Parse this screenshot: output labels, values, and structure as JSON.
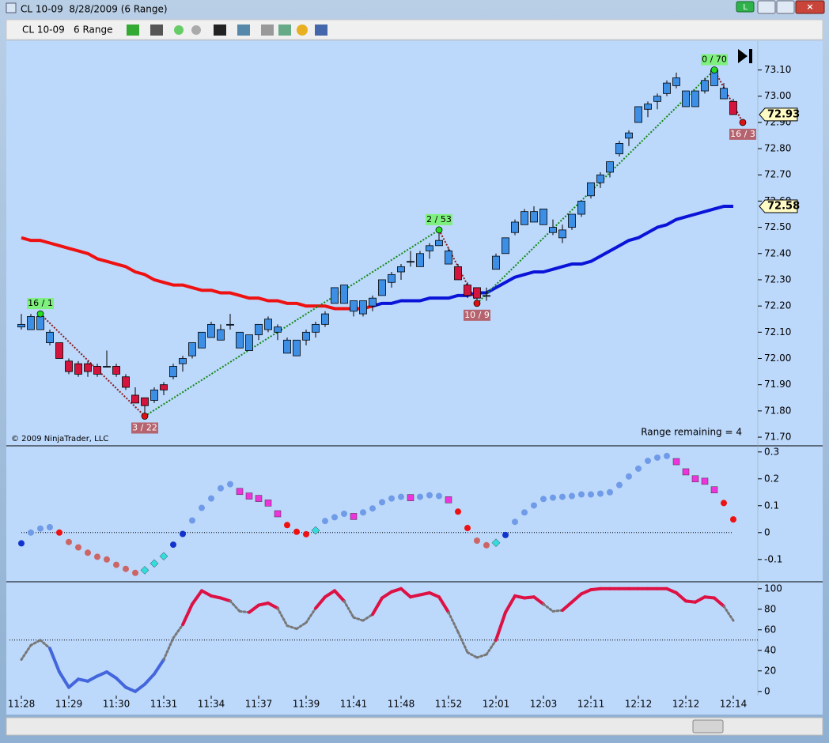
{
  "window": {
    "title": "CL 10-09  8/28/2009 (6 Range)",
    "instrument": "CL 10-09",
    "period": "6 Range",
    "badge": "L"
  },
  "chart_data": {
    "type": "candlestick",
    "categories": [
      "11:28",
      null,
      null,
      null,
      null,
      "11:29",
      null,
      null,
      null,
      null,
      "11:30",
      null,
      null,
      null,
      null,
      "11:31",
      null,
      null,
      null,
      null,
      "11:34",
      null,
      null,
      null,
      null,
      "11:37",
      null,
      null,
      null,
      null,
      "11:39",
      null,
      null,
      null,
      null,
      "11:41",
      null,
      null,
      null,
      null,
      "11:48",
      null,
      null,
      null,
      null,
      "11:52",
      null,
      null,
      null,
      null,
      "12:01",
      null,
      null,
      null,
      null,
      "12:03",
      null,
      null,
      null,
      null,
      "12:11",
      null,
      null,
      null,
      null,
      "12:12",
      null,
      null,
      null,
      null,
      "12:12",
      null,
      null,
      null,
      null,
      "12:14",
      null
    ],
    "up_color": "#3d8fe6",
    "down_color": "#d4143c",
    "open": [
      72.12,
      72.11,
      72.11,
      72.06,
      72.06,
      71.99,
      71.98,
      71.98,
      71.97,
      71.97,
      71.97,
      71.93,
      71.86,
      71.85,
      71.84,
      71.9,
      71.93,
      71.98,
      72.01,
      72.04,
      72.08,
      72.07,
      72.13,
      72.04,
      72.03,
      72.09,
      72.11,
      72.1,
      72.02,
      72.01,
      72.07,
      72.1,
      72.13,
      72.21,
      72.21,
      72.18,
      72.17,
      72.2,
      72.24,
      72.29,
      72.33,
      72.37,
      72.35,
      72.41,
      72.43,
      72.36,
      72.35,
      72.28,
      72.27,
      72.24,
      72.34,
      72.4,
      72.48,
      72.51,
      72.52,
      72.51,
      72.48,
      72.46,
      72.5,
      72.55,
      72.62,
      72.67,
      72.71,
      72.78,
      72.84,
      72.9,
      72.95,
      72.98,
      73.01,
      73.04,
      72.96,
      72.96,
      73.02,
      73.04,
      72.99,
      72.98,
      null
    ],
    "high": [
      72.17,
      72.17,
      72.17,
      72.11,
      72.06,
      72.0,
      71.99,
      71.99,
      71.98,
      72.03,
      71.98,
      71.94,
      71.89,
      71.85,
      71.89,
      71.91,
      71.98,
      72.01,
      72.06,
      72.1,
      72.14,
      72.13,
      72.17,
      72.1,
      72.09,
      72.13,
      72.16,
      72.13,
      72.08,
      72.07,
      72.11,
      72.14,
      72.18,
      72.27,
      72.28,
      72.22,
      72.22,
      72.24,
      72.3,
      72.33,
      72.36,
      72.41,
      72.41,
      72.44,
      72.49,
      72.42,
      72.36,
      72.29,
      72.27,
      72.27,
      72.4,
      72.46,
      72.53,
      72.57,
      72.58,
      72.57,
      72.53,
      72.51,
      72.55,
      72.6,
      72.67,
      72.71,
      72.75,
      72.83,
      72.87,
      72.96,
      72.98,
      73.01,
      73.06,
      73.09,
      73.02,
      73.02,
      73.07,
      73.1,
      73.05,
      72.99,
      null
    ],
    "low": [
      72.11,
      72.11,
      72.11,
      72.05,
      72.0,
      71.94,
      71.93,
      71.93,
      71.93,
      71.97,
      71.93,
      71.88,
      71.83,
      71.78,
      71.83,
      71.86,
      71.92,
      71.95,
      72.0,
      72.04,
      72.08,
      72.07,
      72.11,
      72.04,
      72.03,
      72.07,
      72.1,
      72.07,
      72.02,
      72.01,
      72.05,
      72.08,
      72.12,
      72.21,
      72.21,
      72.16,
      72.16,
      72.18,
      72.24,
      72.27,
      72.3,
      72.35,
      72.35,
      72.38,
      72.43,
      72.36,
      72.3,
      72.23,
      72.21,
      72.22,
      72.34,
      72.4,
      72.47,
      72.51,
      72.52,
      72.51,
      72.47,
      72.44,
      72.49,
      72.54,
      72.61,
      72.65,
      72.69,
      72.77,
      72.81,
      72.9,
      72.92,
      72.95,
      73.0,
      73.03,
      72.96,
      72.96,
      73.01,
      73.04,
      72.99,
      72.93,
      null
    ],
    "close": [
      72.13,
      72.16,
      72.16,
      72.1,
      72.0,
      71.95,
      71.94,
      71.95,
      71.94,
      71.97,
      71.94,
      71.89,
      71.83,
      71.82,
      71.88,
      71.88,
      71.97,
      72.0,
      72.06,
      72.1,
      72.13,
      72.11,
      72.13,
      72.1,
      72.09,
      72.13,
      72.15,
      72.12,
      72.07,
      72.07,
      72.1,
      72.13,
      72.17,
      72.27,
      72.28,
      72.22,
      72.22,
      72.23,
      72.3,
      72.32,
      72.35,
      72.37,
      72.4,
      72.43,
      72.45,
      72.41,
      72.3,
      72.24,
      72.23,
      72.24,
      72.39,
      72.46,
      72.52,
      72.56,
      72.56,
      72.57,
      72.5,
      72.49,
      72.55,
      72.6,
      72.67,
      72.7,
      72.75,
      72.82,
      72.86,
      72.96,
      72.97,
      73.0,
      73.05,
      73.07,
      73.02,
      73.02,
      73.06,
      73.1,
      73.03,
      72.93,
      null
    ],
    "ylim": [
      71.67,
      73.21
    ],
    "yticks": [
      {
        "value": 71.7,
        "label": "71.70"
      },
      {
        "value": 71.8,
        "label": "71.80"
      },
      {
        "value": 71.9,
        "label": "71.90"
      },
      {
        "value": 72,
        "label": "72.00"
      },
      {
        "value": 72.1,
        "label": "72.10"
      },
      {
        "value": 72.2,
        "label": "72.20"
      },
      {
        "value": 72.3,
        "label": "72.30"
      },
      {
        "value": 72.4,
        "label": "72.40"
      },
      {
        "value": 72.5,
        "label": "72.50"
      },
      {
        "value": 72.6,
        "label": "72.60"
      },
      {
        "value": 72.7,
        "label": "72.70"
      },
      {
        "value": 72.8,
        "label": "72.80"
      },
      {
        "value": 72.9,
        "label": "72.90"
      },
      {
        "value": 73,
        "label": "73.00"
      },
      {
        "value": 73.1,
        "label": "73.10"
      }
    ],
    "moving_average": [
      {
        "color": "#ee1111",
        "values": [
          72.46,
          72.45,
          72.45,
          72.44,
          72.43,
          72.42,
          72.41,
          72.4,
          72.38,
          72.37,
          72.36,
          72.35,
          72.33,
          72.32,
          72.3,
          72.29,
          72.28,
          72.28,
          72.27,
          72.26,
          72.26,
          72.25,
          72.25,
          72.24,
          72.23,
          72.23,
          72.22,
          72.22,
          72.21,
          72.21,
          72.2,
          72.2,
          72.2,
          72.19,
          72.19,
          72.19,
          72.19,
          72.2,
          null,
          null,
          null,
          null,
          null,
          null,
          null,
          null,
          null,
          null,
          null,
          null,
          null,
          null,
          null,
          null,
          null,
          null,
          null,
          null,
          null,
          null,
          null,
          null,
          null,
          null,
          null,
          null,
          null,
          null,
          null,
          null,
          null,
          null,
          null,
          null,
          null,
          null,
          null
        ]
      },
      {
        "color": "#0a14d8",
        "values": [
          null,
          null,
          null,
          null,
          null,
          null,
          null,
          null,
          null,
          null,
          null,
          null,
          null,
          null,
          null,
          null,
          null,
          null,
          null,
          null,
          null,
          null,
          null,
          null,
          null,
          null,
          null,
          null,
          null,
          null,
          null,
          null,
          null,
          null,
          null,
          null,
          null,
          72.2,
          72.21,
          72.21,
          72.22,
          72.22,
          72.22,
          72.23,
          72.23,
          72.23,
          72.24,
          72.24,
          72.25,
          72.25,
          72.27,
          72.29,
          72.31,
          72.32,
          72.33,
          72.33,
          72.34,
          72.35,
          72.36,
          72.36,
          72.37,
          72.39,
          72.41,
          72.43,
          72.45,
          72.46,
          72.48,
          72.5,
          72.51,
          72.53,
          72.54,
          72.55,
          72.56,
          72.57,
          72.58,
          72.58,
          null
        ]
      }
    ],
    "price_markers": [
      72.93,
      72.58
    ],
    "marker_color": "#fffbc4",
    "pivots": [
      {
        "bar": 2,
        "price": 72.17,
        "label": "16 / 1",
        "kind": "high"
      },
      {
        "bar": 13,
        "price": 71.78,
        "label": "3 / 22",
        "kind": "low"
      },
      {
        "bar": 44,
        "price": 72.49,
        "label": "2 / 53",
        "kind": "high"
      },
      {
        "bar": 48,
        "price": 72.21,
        "label": "10 / 9",
        "kind": "low"
      },
      {
        "bar": 73,
        "price": 73.1,
        "label": "0 / 70",
        "kind": "high"
      },
      {
        "bar": 76,
        "price": 72.9,
        "label": "16 / 3",
        "kind": "low"
      }
    ],
    "high_color": "#22dd22",
    "high_label_color": "#7ef07e",
    "low_color": "#dd1111",
    "low_label_color": "#b5636e",
    "up_line_color": "#118811",
    "down_line_color": "#8b1a1a",
    "copyright": "© 2009 NinjaTrader, LLC",
    "range_text": "Range remaining = 4",
    "oscillator": {
      "ylim": [
        -0.18,
        0.32
      ],
      "yticks": [
        0.3,
        0.2,
        0.1,
        0,
        -0.1
      ],
      "zero": 0,
      "values": [
        -0.04,
        0,
        0.015,
        0.02,
        0,
        -0.035,
        -0.055,
        -0.075,
        -0.09,
        -0.1,
        -0.12,
        -0.135,
        -0.15,
        -0.14,
        -0.115,
        -0.088,
        -0.045,
        -0.005,
        0.045,
        0.092,
        0.127,
        0.165,
        0.18,
        0.153,
        0.136,
        0.127,
        0.11,
        0.07,
        0.028,
        0.003,
        -0.006,
        0.008,
        0.043,
        0.057,
        0.07,
        0.06,
        0.075,
        0.09,
        0.113,
        0.127,
        0.133,
        0.13,
        0.133,
        0.139,
        0.136,
        0.122,
        0.078,
        0.017,
        -0.03,
        -0.047,
        -0.038,
        -0.009,
        0.04,
        0.075,
        0.101,
        0.125,
        0.13,
        0.133,
        0.136,
        0.142,
        0.142,
        0.145,
        0.15,
        0.177,
        0.209,
        0.238,
        0.267,
        0.279,
        0.285,
        0.264,
        0.226,
        0.2,
        0.191,
        0.159,
        0.11,
        0.049,
        null
      ],
      "styles": {
        "B": {
          "color": "#1133cc",
          "shape": "circle"
        },
        "L": {
          "color": "#6f9be8",
          "shape": "circle"
        },
        "R": {
          "color": "#ee1111",
          "shape": "circle"
        },
        "I": {
          "color": "#cc6666",
          "shape": "circle"
        },
        "C": {
          "color": "#33dddd",
          "shape": "diamond"
        },
        "M": {
          "color": "#ee33dd",
          "shape": "square"
        }
      },
      "dot_styles": [
        "B",
        "L",
        "L",
        "L",
        "R",
        "I",
        "I",
        "I",
        "I",
        "I",
        "I",
        "I",
        "I",
        "C",
        "C",
        "C",
        "B",
        "B",
        "L",
        "L",
        "L",
        "L",
        "L",
        "M",
        "M",
        "M",
        "M",
        "M",
        "R",
        "R",
        "R",
        "C",
        "L",
        "L",
        "L",
        "M",
        "L",
        "L",
        "L",
        "L",
        "L",
        "M",
        "L",
        "L",
        "L",
        "M",
        "R",
        "R",
        "I",
        "I",
        "C",
        "B",
        "L",
        "L",
        "L",
        "L",
        "L",
        "L",
        "L",
        "L",
        "L",
        "L",
        "L",
        "L",
        "L",
        "L",
        "L",
        "L",
        "L",
        "M",
        "M",
        "M",
        "M",
        "M",
        "R",
        "R",
        null
      ]
    },
    "stochastic": {
      "ylim": [
        -4,
        106
      ],
      "yticks": [
        0,
        20,
        40,
        60,
        80,
        100
      ],
      "midline": 50,
      "values": [
        31,
        45,
        50,
        42,
        19,
        4,
        12,
        10,
        15,
        19,
        13,
        4,
        0,
        7,
        17,
        31,
        52,
        65,
        85,
        98,
        93,
        91,
        88,
        78,
        77,
        84,
        86,
        81,
        64,
        61,
        67,
        81,
        92,
        98,
        88,
        72,
        69,
        75,
        91,
        97,
        100,
        92,
        94,
        96,
        92,
        77,
        58,
        38,
        33,
        36,
        50,
        77,
        93,
        91,
        92,
        85,
        78,
        79,
        87,
        95,
        99,
        100,
        100,
        100,
        100,
        100,
        100,
        100,
        100,
        96,
        88,
        87,
        92,
        91,
        83,
        69,
        null
      ],
      "styles": {
        "r": {
          "color": "#dd1144",
          "width": 4,
          "dash": "none"
        },
        "b": {
          "color": "#4466dd",
          "width": 4,
          "dash": "none"
        },
        "g": {
          "color": "#777777",
          "width": 3,
          "dash": "2 3"
        }
      },
      "segment_styles": [
        "g",
        "g",
        "g",
        "g",
        "b",
        "b",
        "b",
        "b",
        "b",
        "b",
        "b",
        "b",
        "b",
        "b",
        "b",
        "b",
        "g",
        "g",
        "r",
        "r",
        "r",
        "r",
        "r",
        "g",
        "g",
        "r",
        "r",
        "r",
        "g",
        "g",
        "g",
        "g",
        "r",
        "r",
        "r",
        "g",
        "g",
        "g",
        "r",
        "r",
        "r",
        "r",
        "r",
        "r",
        "r",
        "r",
        "g",
        "g",
        "g",
        "g",
        "g",
        "r",
        "r",
        "r",
        "r",
        "r",
        "g",
        "g",
        "r",
        "r",
        "r",
        "r",
        "r",
        "r",
        "r",
        "r",
        "r",
        "r",
        "r",
        "r",
        "r",
        "r",
        "r",
        "r",
        "r",
        "g",
        null
      ]
    }
  }
}
